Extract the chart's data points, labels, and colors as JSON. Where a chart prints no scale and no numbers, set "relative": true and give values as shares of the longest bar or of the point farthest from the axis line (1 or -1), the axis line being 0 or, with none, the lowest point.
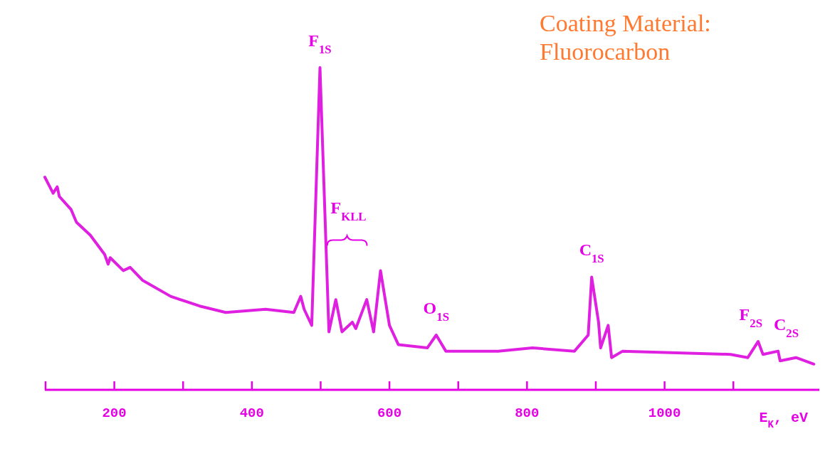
{
  "chart_data": {
    "type": "line",
    "title": "Coating Material:\nFluorocarbon",
    "xlabel": "E$_{K}$, eV",
    "relative": true,
    "x": [
      99,
      111,
      117,
      120,
      137,
      145,
      165,
      186,
      191,
      194,
      213,
      223,
      241,
      282,
      324,
      362,
      420,
      461,
      471,
      476,
      487,
      499,
      512,
      522,
      531,
      546,
      551,
      567,
      577,
      587,
      600,
      613,
      655,
      668,
      682,
      758,
      808,
      869,
      889,
      894,
      904,
      907,
      918,
      923,
      939,
      1096,
      1121,
      1136,
      1143,
      1165,
      1168,
      1191,
      1217
    ],
    "series": [
      {
        "color": "#e020e0",
        "values": [
          0.66,
          0.61,
          0.63,
          0.6,
          0.56,
          0.52,
          0.48,
          0.42,
          0.39,
          0.41,
          0.37,
          0.38,
          0.34,
          0.29,
          0.26,
          0.24,
          0.25,
          0.24,
          0.29,
          0.25,
          0.2,
          1,
          0.18,
          0.28,
          0.18,
          0.21,
          0.19,
          0.28,
          0.18,
          0.37,
          0.2,
          0.14,
          0.13,
          0.17,
          0.12,
          0.12,
          0.13,
          0.12,
          0.17,
          0.35,
          0.21,
          0.13,
          0.2,
          0.1,
          0.12,
          0.11,
          0.1,
          0.15,
          0.11,
          0.12,
          0.09,
          0.1,
          0.08
        ]
      }
    ],
    "xlim": [
      99,
      1225
    ],
    "xticks": [
      {
        "value": 100,
        "label": null
      },
      200,
      {
        "value": 300,
        "label": null
      },
      400,
      {
        "value": 500,
        "label": null
      },
      600,
      {
        "value": 700,
        "label": null
      },
      800,
      {
        "value": 900,
        "label": null
      },
      1000,
      {
        "value": 1100,
        "label": null
      }
    ],
    "annotations": [
      {
        "text": "F$_{1S}$",
        "x": 499,
        "y": 1
      },
      {
        "text": "F$_{KLL}$",
        "x": 587,
        "y": 0.37
      },
      {
        "text": "O$_{1S}$",
        "x": 668,
        "y": 0.17
      },
      {
        "text": "C$_{1S}$",
        "x": 894,
        "y": 0.35
      },
      {
        "text": "F$_{2S}$",
        "x": 1136,
        "y": 0.15
      },
      {
        "text": "C$_{2S}$",
        "x": 1165,
        "y": 0.12
      }
    ],
    "marker": "none",
    "line_style": "solid",
    "grid": false
  }
}
